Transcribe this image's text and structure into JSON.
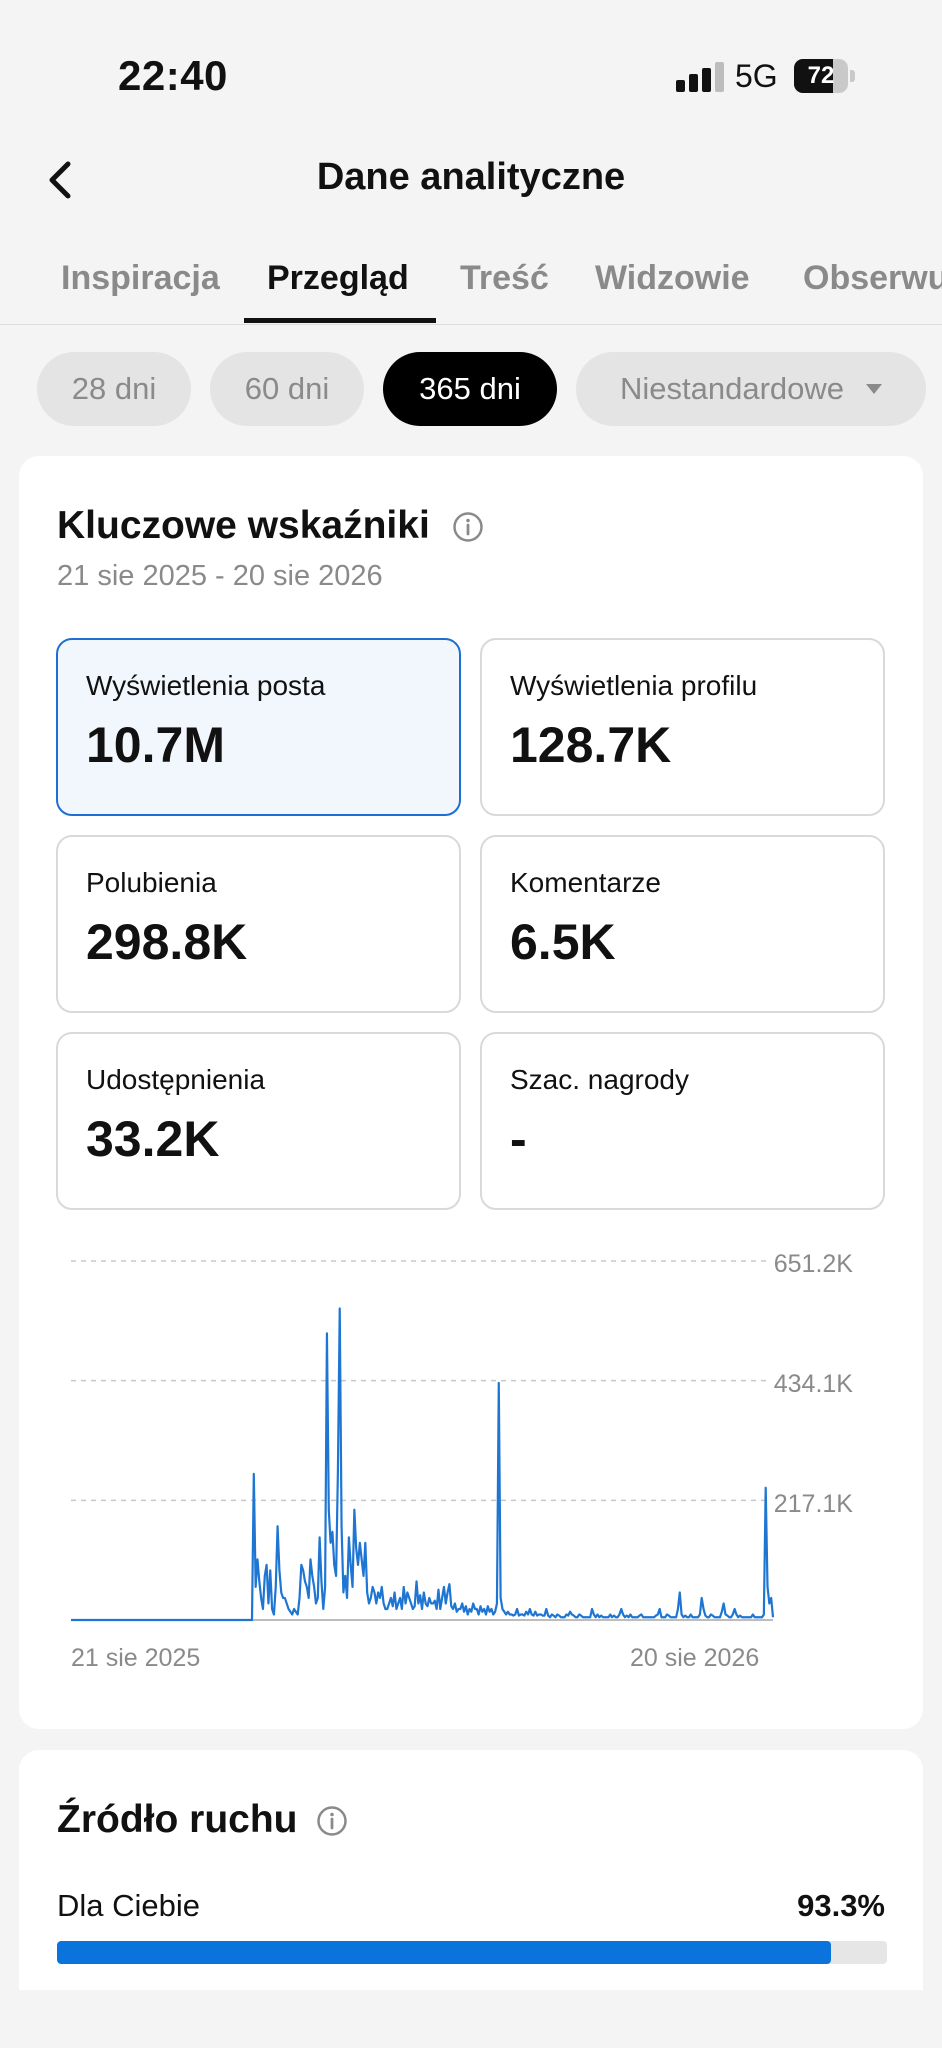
{
  "status_bar": {
    "time": "22:40",
    "network": "5G",
    "battery": "72",
    "battery_level": 0.72
  },
  "header": {
    "title": "Dane analityczne",
    "back_icon": "chevron-left-icon"
  },
  "tabs": [
    {
      "label": "Inspiracja",
      "active": false
    },
    {
      "label": "Przegląd",
      "active": true
    },
    {
      "label": "Treść",
      "active": false
    },
    {
      "label": "Widzowie",
      "active": false
    },
    {
      "label": "Obserwujący",
      "active": false
    }
  ],
  "periods": [
    {
      "label": "28 dni",
      "active": false
    },
    {
      "label": "60 dni",
      "active": false
    },
    {
      "label": "365 dni",
      "active": true
    },
    {
      "label": "Niestandardowe",
      "active": false
    }
  ],
  "key_metrics": {
    "title": "Kluczowe wskaźniki",
    "date_range": "21 sie 2025 - 20 sie 2026",
    "items": [
      {
        "label": "Wyświetlenia posta",
        "value": "10.7M",
        "selected": true
      },
      {
        "label": "Wyświetlenia profilu",
        "value": "128.7K",
        "selected": false
      },
      {
        "label": "Polubienia",
        "value": "298.8K",
        "selected": false
      },
      {
        "label": "Komentarze",
        "value": "6.5K",
        "selected": false
      },
      {
        "label": "Udostępnienia",
        "value": "33.2K",
        "selected": false
      },
      {
        "label": "Szac. nagrody",
        "value": "-",
        "selected": false
      }
    ]
  },
  "chart_data": {
    "type": "line",
    "series": [
      {
        "values": [
          0,
          0,
          0,
          0,
          0,
          0,
          0,
          0,
          0,
          0,
          0,
          0,
          0,
          0,
          0,
          0,
          0,
          0,
          0,
          0,
          0,
          0,
          0,
          0,
          0,
          0,
          0,
          0,
          0,
          0,
          0,
          0,
          0,
          0,
          0,
          0,
          0,
          0,
          0,
          0,
          0,
          0,
          0,
          0,
          0,
          0,
          0,
          0,
          0,
          0,
          0,
          0,
          0,
          0,
          0,
          0,
          0,
          0,
          0,
          0,
          0,
          0,
          0,
          0,
          0,
          0,
          0,
          0,
          0,
          0,
          0,
          0,
          0,
          0,
          0,
          0,
          0,
          0,
          0,
          0,
          0,
          0,
          0,
          0,
          0,
          0,
          0,
          0,
          0,
          0,
          0,
          0,
          0,
          0,
          0,
          0,
          0,
          0,
          0,
          0,
          265000,
          60000,
          110000,
          70000,
          40000,
          20000,
          80000,
          100000,
          30000,
          90000,
          20000,
          10000,
          60000,
          170000,
          90000,
          50000,
          40000,
          40000,
          30000,
          20000,
          15000,
          10000,
          20000,
          15000,
          10000,
          40000,
          100000,
          90000,
          70000,
          60000,
          40000,
          110000,
          80000,
          60000,
          30000,
          40000,
          150000,
          70000,
          20000,
          60000,
          520000,
          200000,
          140000,
          160000,
          100000,
          80000,
          270000,
          565000,
          170000,
          50000,
          80000,
          40000,
          150000,
          100000,
          60000,
          200000,
          130000,
          100000,
          140000,
          110000,
          80000,
          140000,
          50000,
          30000,
          40000,
          60000,
          50000,
          30000,
          50000,
          40000,
          60000,
          30000,
          20000,
          20000,
          30000,
          40000,
          25000,
          50000,
          20000,
          30000,
          40000,
          20000,
          60000,
          30000,
          50000,
          40000,
          30000,
          20000,
          25000,
          70000,
          30000,
          45000,
          20000,
          50000,
          30000,
          25000,
          40000,
          30000,
          30000,
          35000,
          20000,
          55000,
          20000,
          40000,
          60000,
          30000,
          50000,
          65000,
          25000,
          20000,
          30000,
          15000,
          20000,
          20000,
          30000,
          15000,
          25000,
          10000,
          20000,
          15000,
          30000,
          20000,
          20000,
          10000,
          25000,
          15000,
          20000,
          10000,
          25000,
          15000,
          20000,
          10000,
          15000,
          30000,
          430000,
          40000,
          20000,
          15000,
          10000,
          15000,
          10000,
          10000,
          8000,
          10000,
          20000,
          8000,
          10000,
          10000,
          8000,
          15000,
          10000,
          20000,
          10000,
          8000,
          15000,
          8000,
          10000,
          10000,
          8000,
          8000,
          20000,
          8000,
          5000,
          10000,
          8000,
          5000,
          10000,
          8000,
          5000,
          5000,
          5000,
          10000,
          8000,
          15000,
          10000,
          8000,
          5000,
          5000,
          10000,
          8000,
          5000,
          5000,
          5000,
          5000,
          5000,
          20000,
          10000,
          5000,
          10000,
          5000,
          8000,
          5000,
          5000,
          5000,
          5000,
          10000,
          5000,
          8000,
          5000,
          5000,
          10000,
          20000,
          10000,
          5000,
          8000,
          5000,
          10000,
          5000,
          5000,
          5000,
          5000,
          8000,
          10000,
          5000,
          5000,
          5000,
          5000,
          5000,
          5000,
          5000,
          8000,
          10000,
          20000,
          5000,
          5000,
          5000,
          10000,
          8000,
          5000,
          5000,
          5000,
          5000,
          20000,
          50000,
          10000,
          5000,
          8000,
          5000,
          5000,
          10000,
          5000,
          5000,
          5000,
          5000,
          10000,
          40000,
          20000,
          8000,
          5000,
          5000,
          10000,
          8000,
          5000,
          5000,
          5000,
          5000,
          15000,
          30000,
          10000,
          8000,
          5000,
          5000,
          10000,
          20000,
          10000,
          5000,
          8000,
          5000,
          5000,
          5000,
          5000,
          5000,
          5000,
          10000,
          5000,
          5000,
          5000,
          5000,
          5000,
          10000,
          240000,
          60000,
          30000,
          40000,
          5000
        ]
      }
    ],
    "ylim": [
      0,
      651200
    ],
    "y_ticks": [
      "651.2K",
      "434.1K",
      "217.1K"
    ],
    "x_ticks": [
      "21 sie 2025",
      "20 sie 2026"
    ],
    "grid": true,
    "color": "#1f76d2"
  },
  "traffic_source": {
    "title": "Źródło ruchu",
    "items": [
      {
        "label": "Dla Ciebie",
        "value": "93.3%",
        "fraction": 0.933
      }
    ],
    "bar_color": "#0a74dc"
  }
}
